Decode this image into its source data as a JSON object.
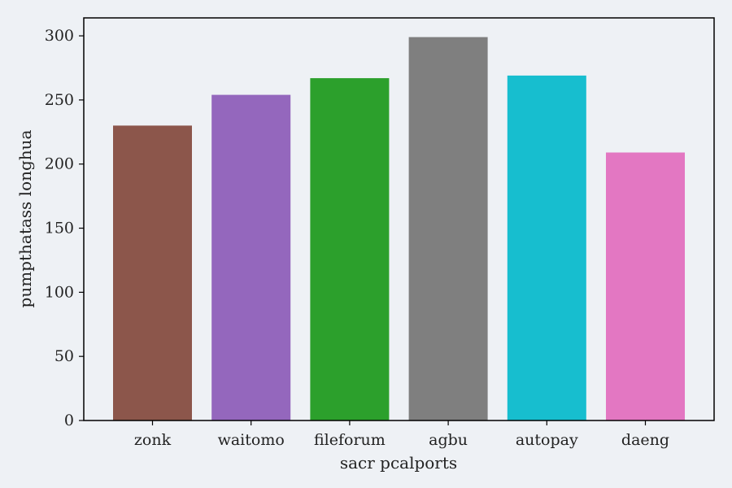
{
  "chart_data": {
    "type": "bar",
    "title": "",
    "xlabel": "sacr pcalports",
    "ylabel": "pumpthatass longhua",
    "categories": [
      "zonk",
      "waitomo",
      "fileforum",
      "agbu",
      "autopay",
      "daeng"
    ],
    "values": [
      230,
      254,
      267,
      299,
      269,
      209
    ],
    "colors": [
      "#8c564b",
      "#9467bd",
      "#2ca02c",
      "#7f7f7f",
      "#17becf",
      "#e377c2"
    ],
    "ylim": [
      0,
      314
    ],
    "yticks": [
      "0",
      "50",
      "100",
      "150",
      "200",
      "250",
      "300"
    ],
    "grid": false,
    "legend": "none"
  }
}
